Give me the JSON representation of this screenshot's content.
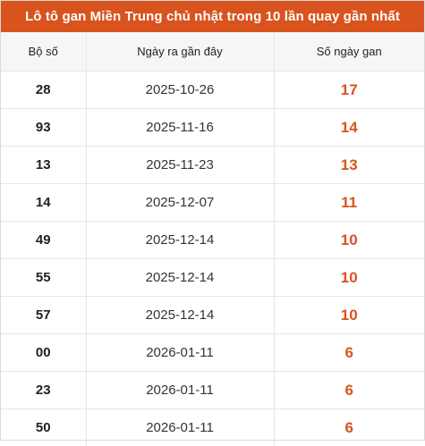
{
  "title": "Lô tô gan Miền Trung chủ nhật trong 10 lần quay gần nhất",
  "columns": [
    "Bộ số",
    "Ngày ra gần đây",
    "Số ngày gan"
  ],
  "accent_color": "#d9531e",
  "rows": [
    {
      "number": "28",
      "date": "2025-10-26",
      "days": "17"
    },
    {
      "number": "93",
      "date": "2025-11-16",
      "days": "14"
    },
    {
      "number": "13",
      "date": "2025-11-23",
      "days": "13"
    },
    {
      "number": "14",
      "date": "2025-12-07",
      "days": "11"
    },
    {
      "number": "49",
      "date": "2025-12-14",
      "days": "10"
    },
    {
      "number": "55",
      "date": "2025-12-14",
      "days": "10"
    },
    {
      "number": "57",
      "date": "2025-12-14",
      "days": "10"
    },
    {
      "number": "00",
      "date": "2026-01-11",
      "days": "6"
    },
    {
      "number": "23",
      "date": "2026-01-11",
      "days": "6"
    },
    {
      "number": "50",
      "date": "2026-01-11",
      "days": "6"
    }
  ]
}
